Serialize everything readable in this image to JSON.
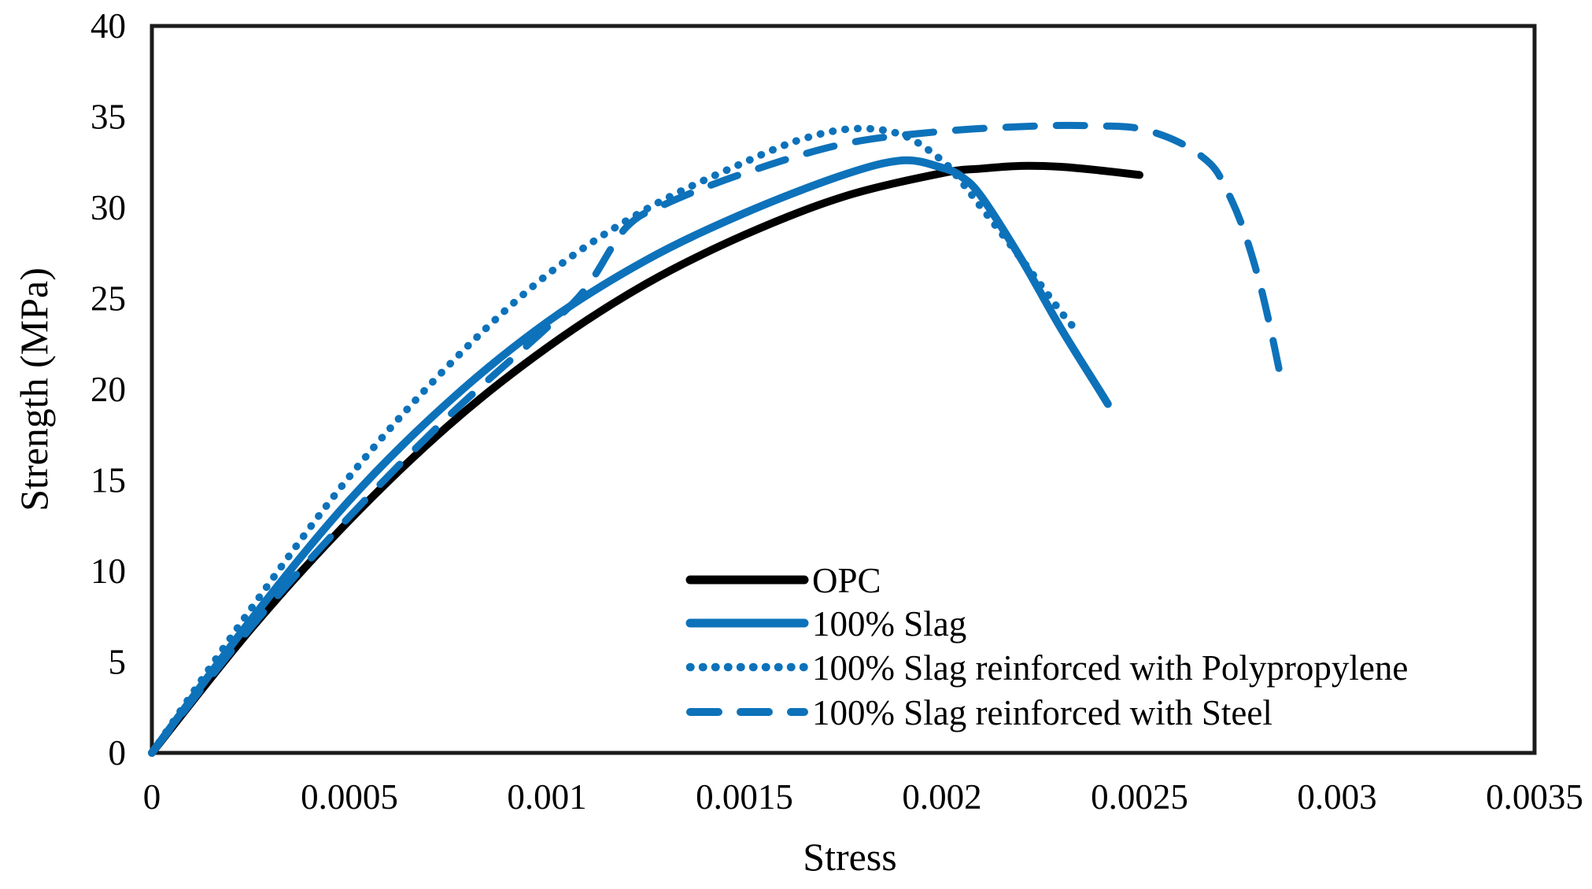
{
  "chart_data": {
    "type": "line",
    "title": "",
    "xlabel": "Stress",
    "ylabel": "Strength (MPa)",
    "xlim": [
      0,
      0.0035
    ],
    "ylim": [
      0,
      40
    ],
    "grid": false,
    "frame": true,
    "frame_color": "#1b1b1b",
    "background_color": "#ffffff",
    "legend_position": "inside bottom-center",
    "accent_blue": "#0d72ba",
    "x_ticks": [
      {
        "label": "0",
        "value": 0
      },
      {
        "label": "0.0005",
        "value": 0.0005
      },
      {
        "label": "0.001",
        "value": 0.001
      },
      {
        "label": "0.0015",
        "value": 0.0015
      },
      {
        "label": "0.002",
        "value": 0.002
      },
      {
        "label": "0.0025",
        "value": 0.0025
      },
      {
        "label": "0.003",
        "value": 0.003
      },
      {
        "label": "0.0035",
        "value": 0.0035
      }
    ],
    "y_ticks": [
      {
        "label": "0",
        "value": 0
      },
      {
        "label": "5",
        "value": 5
      },
      {
        "label": "10",
        "value": 10
      },
      {
        "label": "15",
        "value": 15
      },
      {
        "label": "20",
        "value": 20
      },
      {
        "label": "25",
        "value": 25
      },
      {
        "label": "30",
        "value": 30
      },
      {
        "label": "35",
        "value": 35
      },
      {
        "label": "40",
        "value": 40
      }
    ],
    "series": [
      {
        "name": "OPC",
        "color": "#000000",
        "line_style": "solid",
        "line_width": 10,
        "points": [
          [
            0,
            0
          ],
          [
            0.00025,
            6.8
          ],
          [
            0.0005,
            12.8
          ],
          [
            0.00075,
            18.0
          ],
          [
            0.001,
            22.3
          ],
          [
            0.00125,
            25.8
          ],
          [
            0.0015,
            28.5
          ],
          [
            0.00175,
            30.6
          ],
          [
            0.002,
            31.9
          ],
          [
            0.0021,
            32.15
          ],
          [
            0.0022,
            32.3
          ],
          [
            0.0023,
            32.25
          ],
          [
            0.0024,
            32.05
          ],
          [
            0.0025,
            31.8
          ]
        ]
      },
      {
        "name": "100% Slag",
        "color": "#0d72ba",
        "line_style": "solid",
        "line_width": 10,
        "points": [
          [
            0,
            0
          ],
          [
            0.00025,
            7.3
          ],
          [
            0.0005,
            13.9
          ],
          [
            0.00075,
            19.3
          ],
          [
            0.001,
            23.7
          ],
          [
            0.00125,
            27.1
          ],
          [
            0.0015,
            29.7
          ],
          [
            0.00175,
            31.8
          ],
          [
            0.0019,
            32.6
          ],
          [
            0.002,
            32.2
          ],
          [
            0.00205,
            31.7
          ],
          [
            0.0021,
            30.6
          ],
          [
            0.0022,
            27.2
          ],
          [
            0.0023,
            23.4
          ],
          [
            0.0024,
            19.9
          ],
          [
            0.00242,
            19.2
          ]
        ]
      },
      {
        "name": "100% Slag reinforced with Polypropylene",
        "color": "#0d72ba",
        "line_style": "dotted",
        "line_width": 9.5,
        "points": [
          [
            0,
            0
          ],
          [
            0.00025,
            7.9
          ],
          [
            0.0005,
            15.2
          ],
          [
            0.00075,
            21.3
          ],
          [
            0.001,
            26.3
          ],
          [
            0.00125,
            29.9
          ],
          [
            0.0015,
            32.5
          ],
          [
            0.00165,
            33.8
          ],
          [
            0.00178,
            34.35
          ],
          [
            0.0019,
            34.0
          ],
          [
            0.002,
            32.6
          ],
          [
            0.00205,
            31.4
          ],
          [
            0.0021,
            30.0
          ],
          [
            0.0022,
            27.2
          ],
          [
            0.0023,
            24.3
          ],
          [
            0.00233,
            23.5
          ]
        ]
      },
      {
        "name": "100% Slag reinforced with Steel",
        "color": "#0d72ba",
        "line_style": "dashed",
        "line_width": 9,
        "points": [
          [
            0,
            0
          ],
          [
            0.00025,
            6.9
          ],
          [
            0.0005,
            13.0
          ],
          [
            0.00075,
            18.5
          ],
          [
            0.001,
            23.4
          ],
          [
            0.0011,
            25.6
          ],
          [
            0.0012,
            28.9
          ],
          [
            0.0013,
            30.2
          ],
          [
            0.0015,
            31.9
          ],
          [
            0.00175,
            33.5
          ],
          [
            0.002,
            34.2
          ],
          [
            0.00225,
            34.5
          ],
          [
            0.0024,
            34.5
          ],
          [
            0.0025,
            34.35
          ],
          [
            0.0026,
            33.6
          ],
          [
            0.00268,
            32.4
          ],
          [
            0.00272,
            31.0
          ],
          [
            0.00276,
            29.0
          ],
          [
            0.0028,
            26.2
          ],
          [
            0.00283,
            23.5
          ],
          [
            0.00286,
            20.4
          ]
        ]
      }
    ]
  }
}
